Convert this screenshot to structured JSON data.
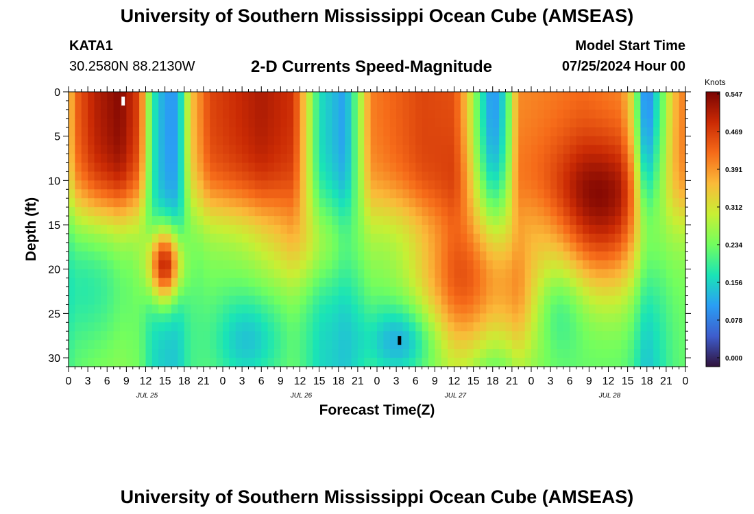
{
  "page": {
    "title_top": "University of Southern Mississippi Ocean Cube (AMSEAS)",
    "title_bottom": "University of Southern Mississippi Ocean Cube (AMSEAS)",
    "station": "KATA1",
    "coords": "30.2580N  88.2130W",
    "subtitle": "2-D Currents Speed-Magnitude",
    "model_start_label": "Model Start Time",
    "model_start_value": "07/25/2024 Hour 00"
  },
  "chart_data": {
    "type": "heatmap",
    "title": "2-D Currents Speed-Magnitude",
    "xlabel": "Forecast Time(Z)",
    "ylabel": "Depth (ft)",
    "x_range_hours": [
      0,
      96
    ],
    "ylim": [
      0,
      31
    ],
    "y_inverted": true,
    "x_tick_labels": [
      "0",
      "3",
      "6",
      "9",
      "12",
      "15",
      "18",
      "21",
      "0",
      "3",
      "6",
      "9",
      "12",
      "15",
      "18",
      "21",
      "0",
      "3",
      "6",
      "9",
      "12",
      "15",
      "18",
      "21",
      "0",
      "3",
      "6",
      "9",
      "12",
      "15",
      "18",
      "21",
      "0"
    ],
    "y_ticks": [
      0,
      5,
      10,
      15,
      20,
      25,
      30
    ],
    "date_labels": [
      {
        "label": "JUL 25",
        "hour": 12
      },
      {
        "label": "JUL 26",
        "hour": 36
      },
      {
        "label": "JUL 27",
        "hour": 60
      },
      {
        "label": "JUL 28",
        "hour": 84
      }
    ],
    "colorbar": {
      "unit": "Knots",
      "min": 0.0,
      "max": 0.547,
      "tick_labels": [
        "0.547",
        "0.469",
        "0.391",
        "0.312",
        "0.234",
        "0.156",
        "0.078",
        "0.000"
      ]
    },
    "max_marker": {
      "hour": 8.5,
      "depth_ft": 1
    },
    "min_marker": {
      "hour": 51.5,
      "depth_ft": 28
    },
    "surface_profile_ft_0": [
      [
        0,
        0.33
      ],
      [
        1,
        0.43
      ],
      [
        4,
        0.5
      ],
      [
        8,
        0.54
      ],
      [
        11,
        0.46
      ],
      [
        13,
        0.2
      ],
      [
        15,
        0.12
      ],
      [
        17,
        0.12
      ],
      [
        19,
        0.35
      ],
      [
        22,
        0.46
      ],
      [
        30,
        0.51
      ],
      [
        35,
        0.48
      ],
      [
        37,
        0.33
      ],
      [
        39,
        0.18
      ],
      [
        43,
        0.12
      ],
      [
        45,
        0.25
      ],
      [
        47,
        0.41
      ],
      [
        55,
        0.46
      ],
      [
        60,
        0.45
      ],
      [
        62,
        0.35
      ],
      [
        64,
        0.2
      ],
      [
        66,
        0.1
      ],
      [
        68,
        0.18
      ],
      [
        70,
        0.4
      ],
      [
        80,
        0.42
      ],
      [
        86,
        0.4
      ],
      [
        88,
        0.3
      ],
      [
        89,
        0.15
      ],
      [
        90,
        0.08
      ],
      [
        92,
        0.2
      ],
      [
        94,
        0.35
      ],
      [
        96,
        0.42
      ]
    ]
  },
  "colors": {
    "colormap_stops": [
      "#30123b",
      "#3e5dcd",
      "#2a9ef4",
      "#1ae4b6",
      "#72fe5e",
      "#c8ef34",
      "#faba39",
      "#f66b19",
      "#ca2a04",
      "#7a0403"
    ]
  }
}
